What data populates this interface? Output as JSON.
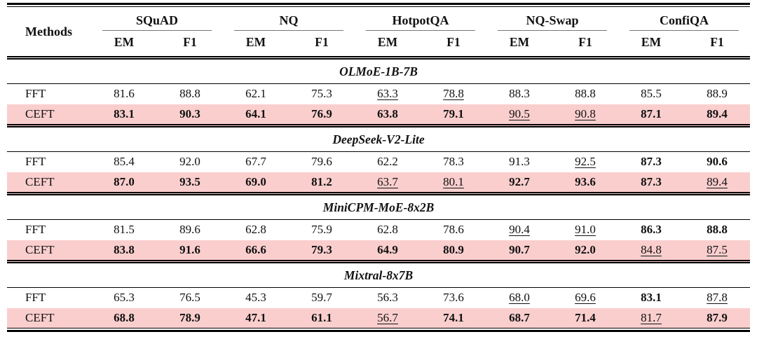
{
  "table": {
    "methods_header": "Methods",
    "groups": [
      {
        "label": "SQuAD",
        "metrics": [
          "EM",
          "F1"
        ]
      },
      {
        "label": "NQ",
        "metrics": [
          "EM",
          "F1"
        ]
      },
      {
        "label": "HotpotQA",
        "metrics": [
          "EM",
          "F1"
        ]
      },
      {
        "label": "NQ-Swap",
        "metrics": [
          "EM",
          "F1"
        ]
      },
      {
        "label": "ConfiQA",
        "metrics": [
          "EM",
          "F1"
        ]
      }
    ],
    "sections": [
      {
        "title": "OLMoE-1B-7B",
        "rows": [
          {
            "method": "FFT",
            "highlight": false,
            "cells": [
              {
                "v": "81.6",
                "s": "p"
              },
              {
                "v": "88.8",
                "s": "p"
              },
              {
                "v": "62.1",
                "s": "p"
              },
              {
                "v": "75.3",
                "s": "p"
              },
              {
                "v": "63.3",
                "s": "u"
              },
              {
                "v": "78.8",
                "s": "u"
              },
              {
                "v": "88.3",
                "s": "p"
              },
              {
                "v": "88.8",
                "s": "p"
              },
              {
                "v": "85.5",
                "s": "p"
              },
              {
                "v": "88.9",
                "s": "p"
              }
            ]
          },
          {
            "method": "CEFT",
            "highlight": true,
            "cells": [
              {
                "v": "83.1",
                "s": "b"
              },
              {
                "v": "90.3",
                "s": "b"
              },
              {
                "v": "64.1",
                "s": "b"
              },
              {
                "v": "76.9",
                "s": "b"
              },
              {
                "v": "63.8",
                "s": "b"
              },
              {
                "v": "79.1",
                "s": "b"
              },
              {
                "v": "90.5",
                "s": "u"
              },
              {
                "v": "90.8",
                "s": "u"
              },
              {
                "v": "87.1",
                "s": "b"
              },
              {
                "v": "89.4",
                "s": "b"
              }
            ]
          }
        ]
      },
      {
        "title": "DeepSeek-V2-Lite",
        "rows": [
          {
            "method": "FFT",
            "highlight": false,
            "cells": [
              {
                "v": "85.4",
                "s": "p"
              },
              {
                "v": "92.0",
                "s": "p"
              },
              {
                "v": "67.7",
                "s": "p"
              },
              {
                "v": "79.6",
                "s": "p"
              },
              {
                "v": "62.2",
                "s": "p"
              },
              {
                "v": "78.3",
                "s": "p"
              },
              {
                "v": "91.3",
                "s": "p"
              },
              {
                "v": "92.5",
                "s": "u"
              },
              {
                "v": "87.3",
                "s": "b"
              },
              {
                "v": "90.6",
                "s": "b"
              }
            ]
          },
          {
            "method": "CEFT",
            "highlight": true,
            "cells": [
              {
                "v": "87.0",
                "s": "b"
              },
              {
                "v": "93.5",
                "s": "b"
              },
              {
                "v": "69.0",
                "s": "b"
              },
              {
                "v": "81.2",
                "s": "b"
              },
              {
                "v": "63.7",
                "s": "u"
              },
              {
                "v": "80.1",
                "s": "u"
              },
              {
                "v": "92.7",
                "s": "b"
              },
              {
                "v": "93.6",
                "s": "b"
              },
              {
                "v": "87.3",
                "s": "b"
              },
              {
                "v": "89.4",
                "s": "u"
              }
            ]
          }
        ]
      },
      {
        "title": "MiniCPM-MoE-8x2B",
        "rows": [
          {
            "method": "FFT",
            "highlight": false,
            "cells": [
              {
                "v": "81.5",
                "s": "p"
              },
              {
                "v": "89.6",
                "s": "p"
              },
              {
                "v": "62.8",
                "s": "p"
              },
              {
                "v": "75.9",
                "s": "p"
              },
              {
                "v": "62.8",
                "s": "p"
              },
              {
                "v": "78.6",
                "s": "p"
              },
              {
                "v": "90.4",
                "s": "u"
              },
              {
                "v": "91.0",
                "s": "u"
              },
              {
                "v": "86.3",
                "s": "b"
              },
              {
                "v": "88.8",
                "s": "b"
              }
            ]
          },
          {
            "method": "CEFT",
            "highlight": true,
            "cells": [
              {
                "v": "83.8",
                "s": "b"
              },
              {
                "v": "91.6",
                "s": "b"
              },
              {
                "v": "66.6",
                "s": "b"
              },
              {
                "v": "79.3",
                "s": "b"
              },
              {
                "v": "64.9",
                "s": "b"
              },
              {
                "v": "80.9",
                "s": "b"
              },
              {
                "v": "90.7",
                "s": "b"
              },
              {
                "v": "92.0",
                "s": "b"
              },
              {
                "v": "84.8",
                "s": "u"
              },
              {
                "v": "87.5",
                "s": "u"
              }
            ]
          }
        ]
      },
      {
        "title": "Mixtral-8x7B",
        "rows": [
          {
            "method": "FFT",
            "highlight": false,
            "cells": [
              {
                "v": "65.3",
                "s": "p"
              },
              {
                "v": "76.5",
                "s": "p"
              },
              {
                "v": "45.3",
                "s": "p"
              },
              {
                "v": "59.7",
                "s": "p"
              },
              {
                "v": "56.3",
                "s": "p"
              },
              {
                "v": "73.6",
                "s": "p"
              },
              {
                "v": "68.0",
                "s": "u"
              },
              {
                "v": "69.6",
                "s": "u"
              },
              {
                "v": "83.1",
                "s": "b"
              },
              {
                "v": "87.8",
                "s": "u"
              }
            ]
          },
          {
            "method": "CEFT",
            "highlight": true,
            "cells": [
              {
                "v": "68.8",
                "s": "b"
              },
              {
                "v": "78.9",
                "s": "b"
              },
              {
                "v": "47.1",
                "s": "b"
              },
              {
                "v": "61.1",
                "s": "b"
              },
              {
                "v": "56.7",
                "s": "u"
              },
              {
                "v": "74.1",
                "s": "b"
              },
              {
                "v": "68.7",
                "s": "b"
              },
              {
                "v": "71.4",
                "s": "b"
              },
              {
                "v": "81.7",
                "s": "u"
              },
              {
                "v": "87.9",
                "s": "b"
              }
            ]
          }
        ]
      }
    ],
    "colors": {
      "highlight": "#fbcece",
      "rule": "#000000",
      "cmidrule": "#777777",
      "text": "#111111"
    }
  }
}
